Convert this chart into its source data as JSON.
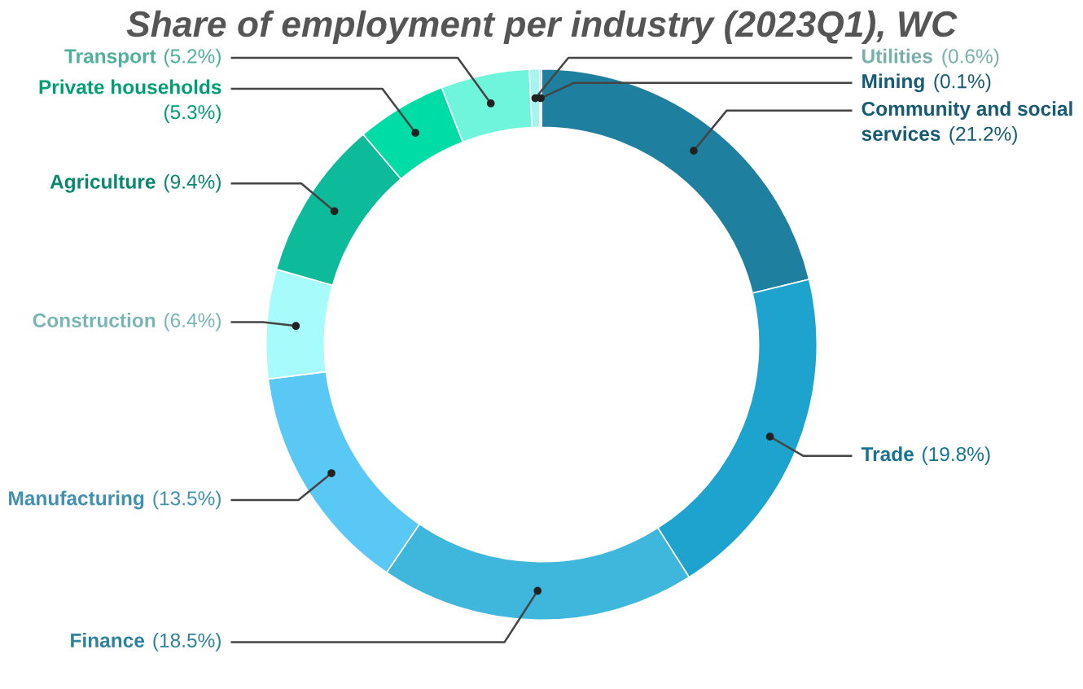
{
  "chart_data": {
    "type": "donut",
    "title": "Share of employment per industry (2023Q1), WC",
    "categories": [
      "Community and social services",
      "Trade",
      "Finance",
      "Manufacturing",
      "Construction",
      "Agriculture",
      "Private households",
      "Transport",
      "Utilities",
      "Mining"
    ],
    "values": [
      21.2,
      19.8,
      18.5,
      13.5,
      6.4,
      9.4,
      5.3,
      5.2,
      0.6,
      0.1
    ],
    "value_labels": [
      "(21.2%)",
      "(19.8%)",
      "(18.5%)",
      "(13.5%)",
      "(6.4%)",
      "(9.4%)",
      "(5.3%)",
      "(5.2%)",
      "(0.6%)",
      "(0.1%)"
    ],
    "colors": [
      "#1f7f9f",
      "#1ea3cf",
      "#3fb6dc",
      "#5ac8f5",
      "#a8fbfb",
      "#0dbb9b",
      "#00dca5",
      "#6ff5dc",
      "#a6f3f0",
      "#1e7ea0"
    ],
    "legend": false
  }
}
